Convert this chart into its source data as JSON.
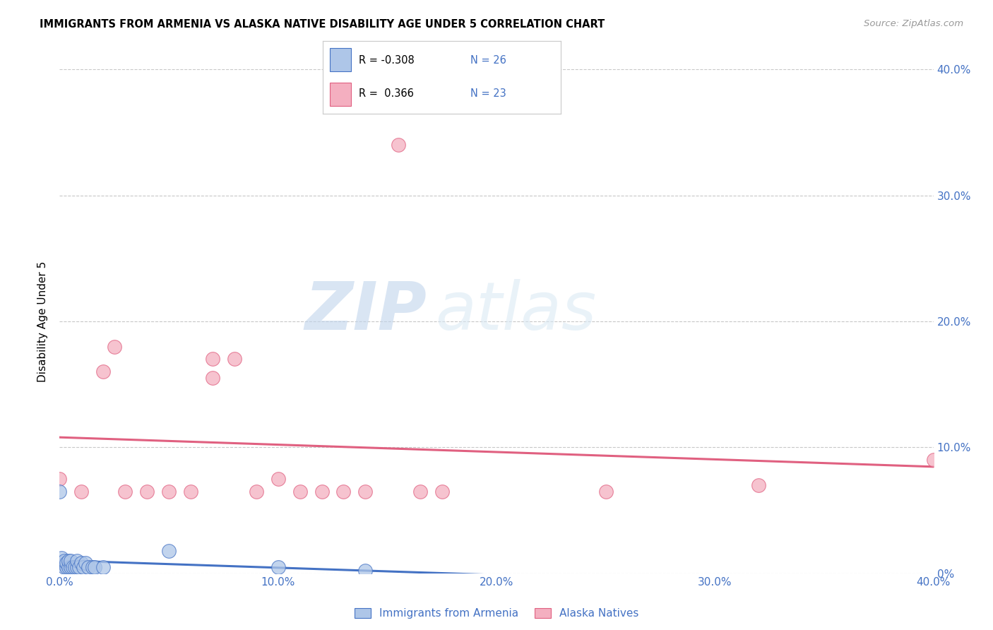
{
  "title": "IMMIGRANTS FROM ARMENIA VS ALASKA NATIVE DISABILITY AGE UNDER 5 CORRELATION CHART",
  "source": "Source: ZipAtlas.com",
  "ylabel_label": "Disability Age Under 5",
  "legend_label_blue": "Immigrants from Armenia",
  "legend_label_pink": "Alaska Natives",
  "blue_color": "#aec6e8",
  "pink_color": "#f4afc0",
  "blue_line_color": "#4472c4",
  "pink_line_color": "#e06080",
  "watermark_zip": "ZIP",
  "watermark_atlas": "atlas",
  "blue_scatter_x": [
    0.0,
    0.001,
    0.001,
    0.002,
    0.002,
    0.003,
    0.003,
    0.004,
    0.004,
    0.005,
    0.005,
    0.006,
    0.007,
    0.008,
    0.008,
    0.009,
    0.01,
    0.011,
    0.012,
    0.013,
    0.015,
    0.016,
    0.02,
    0.05,
    0.1,
    0.14
  ],
  "blue_scatter_y": [
    0.065,
    0.008,
    0.012,
    0.005,
    0.01,
    0.005,
    0.008,
    0.005,
    0.01,
    0.005,
    0.01,
    0.005,
    0.005,
    0.005,
    0.01,
    0.005,
    0.008,
    0.005,
    0.008,
    0.005,
    0.005,
    0.005,
    0.005,
    0.018,
    0.005,
    0.002
  ],
  "pink_scatter_x": [
    0.0,
    0.01,
    0.02,
    0.025,
    0.03,
    0.04,
    0.05,
    0.06,
    0.07,
    0.07,
    0.08,
    0.09,
    0.1,
    0.11,
    0.12,
    0.13,
    0.14,
    0.155,
    0.165,
    0.175,
    0.25,
    0.32,
    0.4
  ],
  "pink_scatter_y": [
    0.075,
    0.065,
    0.16,
    0.18,
    0.065,
    0.065,
    0.065,
    0.065,
    0.155,
    0.17,
    0.17,
    0.065,
    0.075,
    0.065,
    0.065,
    0.065,
    0.065,
    0.34,
    0.065,
    0.065,
    0.065,
    0.07,
    0.09
  ],
  "xmin": 0.0,
  "xmax": 0.4,
  "ymin": 0.0,
  "ymax": 0.4,
  "xtick_vals": [
    0.0,
    0.1,
    0.2,
    0.3,
    0.4
  ],
  "ytick_vals": [
    0.0,
    0.1,
    0.2,
    0.3,
    0.4
  ],
  "xtick_labels": [
    "0.0%",
    "10.0%",
    "20.0%",
    "30.0%",
    "40.0%"
  ],
  "right_ytick_labels": [
    "0%",
    "10.0%",
    "20.0%",
    "30.0%",
    "40.0%"
  ]
}
